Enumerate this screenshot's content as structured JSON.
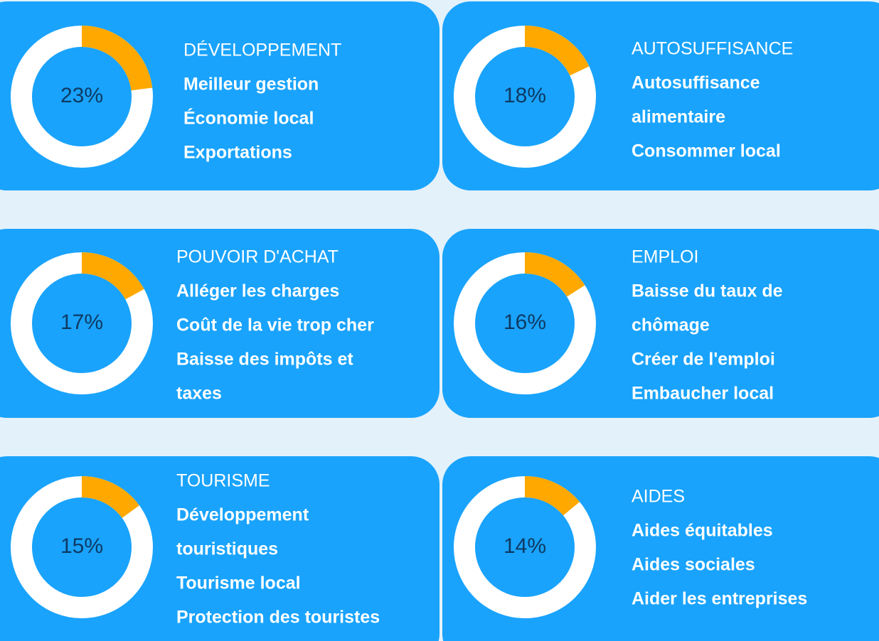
{
  "cards": [
    {
      "value": 23,
      "value_label": "23%",
      "title": "DÉVELOPPEMENT",
      "items": [
        "Meilleur gestion",
        "Économie local",
        "Exportations"
      ]
    },
    {
      "value": 18,
      "value_label": "18%",
      "title": "AUTOSUFFISANCE",
      "items": [
        "Autosuffisance",
        "alimentaire",
        "Consommer local"
      ]
    },
    {
      "value": 17,
      "value_label": "17%",
      "title": "POUVOIR D'ACHAT",
      "items": [
        "Alléger les charges",
        "Coût de la vie trop cher",
        "Baisse des impôts et",
        "taxes"
      ]
    },
    {
      "value": 16,
      "value_label": "16%",
      "title": "EMPLOI",
      "items": [
        "Baisse du taux de",
        "chômage",
        "Créer de l'emploi",
        "Embaucher local"
      ]
    },
    {
      "value": 15,
      "value_label": "15%",
      "title": "TOURISME",
      "items": [
        "Développement",
        "touristiques",
        "Tourisme local",
        "Protection des touristes"
      ]
    },
    {
      "value": 14,
      "value_label": "14%",
      "title": "AIDES",
      "items": [
        "Aides équitables",
        "Aides sociales",
        "Aider les entreprises"
      ]
    }
  ]
}
